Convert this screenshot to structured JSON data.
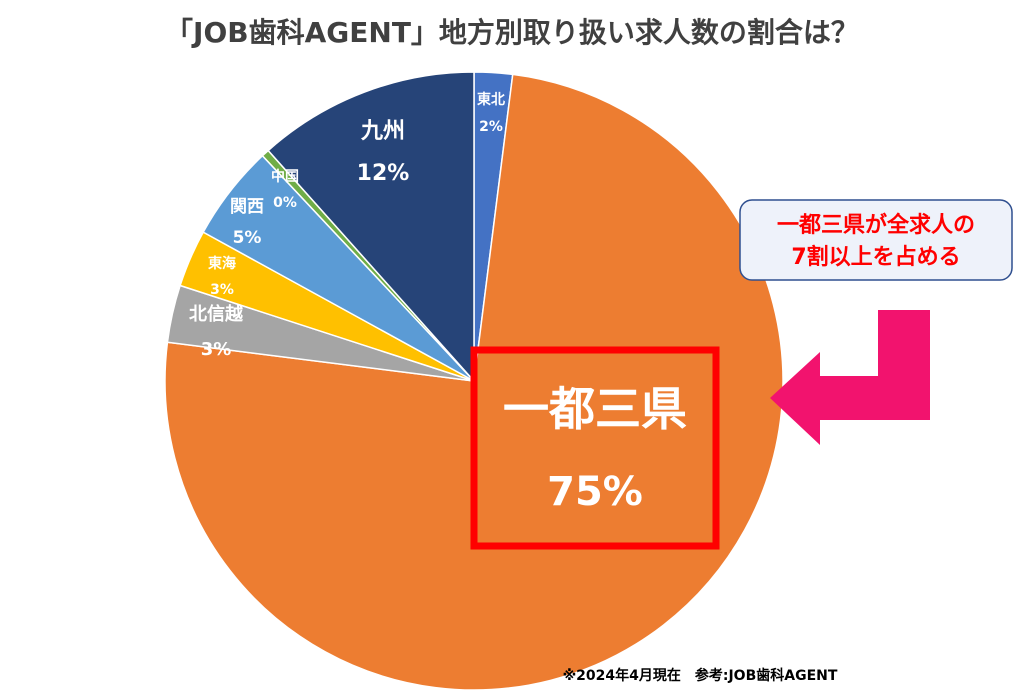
{
  "chart_data": {
    "type": "pie",
    "title": "「JOB歯科AGENT」地方別取り扱い求人数の割合は？",
    "slices": [
      {
        "name": "東北",
        "value": 2,
        "label": "2%",
        "color": "#4472C4"
      },
      {
        "name": "一都三県",
        "value": 75,
        "label": "75%",
        "color": "#ED7D31"
      },
      {
        "name": "北信越",
        "value": 3,
        "label": "3%",
        "color": "#A5A5A5"
      },
      {
        "name": "東海",
        "value": 3,
        "label": "3%",
        "color": "#FFC000"
      },
      {
        "name": "関西",
        "value": 5,
        "label": "5%",
        "color": "#5B9BD5"
      },
      {
        "name": "中国",
        "value": 0.4,
        "label": "0%",
        "color": "#70AD47"
      },
      {
        "name": "九州",
        "value": 11.6,
        "label": "12%",
        "color": "#264478"
      }
    ],
    "start_angle_deg": 0,
    "direction": "clockwise"
  },
  "callout": {
    "line1": "一都三県が全求人の",
    "line2": "7割以上を占める",
    "text_color": "#FF0000",
    "box_fill": "#EEF2FA",
    "box_stroke": "#2F4F8F"
  },
  "highlight_box_color": "#FF0000",
  "arrow_color": "#F2136E",
  "footer": "※2024年4月現在　参考:JOB歯科AGENT"
}
